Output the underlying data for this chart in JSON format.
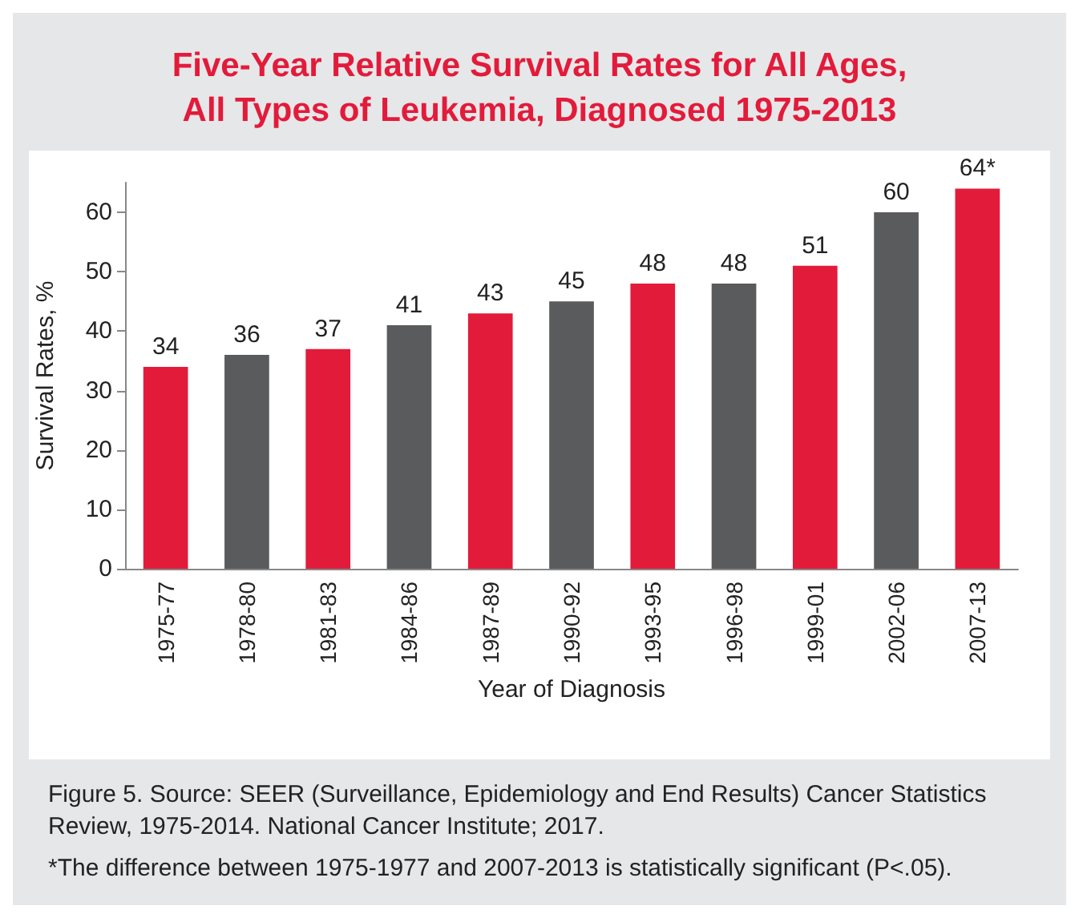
{
  "chart_data": {
    "type": "bar",
    "title": "Five-Year Relative Survival Rates for All Ages,\nAll Types of Leukemia, Diagnosed 1975-2013",
    "xlabel": "Year of Diagnosis",
    "ylabel": "Survival Rates, %",
    "categories": [
      "1975-77",
      "1978-80",
      "1981-83",
      "1984-86",
      "1987-89",
      "1990-92",
      "1993-95",
      "1996-98",
      "1999-01",
      "2002-06",
      "2007-13"
    ],
    "values": [
      34,
      36,
      37,
      41,
      43,
      45,
      48,
      48,
      51,
      60,
      64
    ],
    "value_labels": [
      "34",
      "36",
      "37",
      "41",
      "43",
      "45",
      "48",
      "48",
      "51",
      "60",
      "64*"
    ],
    "colors": [
      "#e31b3b",
      "#5a5b5d",
      "#e31b3b",
      "#5a5b5d",
      "#e31b3b",
      "#5a5b5d",
      "#e31b3b",
      "#5a5b5d",
      "#e31b3b",
      "#5a5b5d",
      "#e31b3b"
    ],
    "ylim": [
      0,
      65
    ],
    "yticks": [
      0,
      10,
      20,
      30,
      40,
      50,
      60
    ],
    "grid": false,
    "annotations": [
      "Figure 5. Source: SEER (Surveillance, Epidemiology and End Results) Cancer Statistics Review, 1975-2014. National Cancer Institute; 2017.",
      "*The difference between 1975-1977 and 2007-2013 is statistically significant (P<.05)."
    ]
  }
}
